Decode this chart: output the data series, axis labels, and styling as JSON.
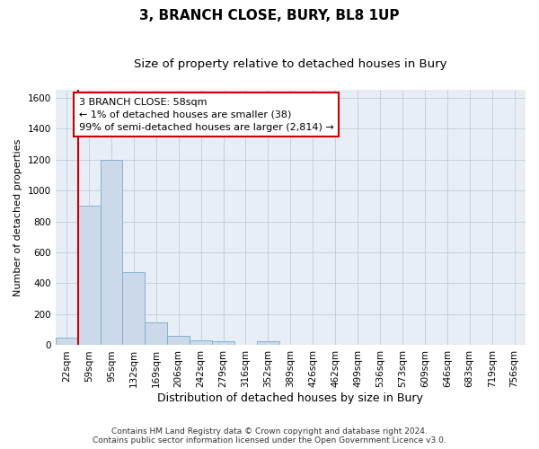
{
  "title": "3, BRANCH CLOSE, BURY, BL8 1UP",
  "subtitle": "Size of property relative to detached houses in Bury",
  "xlabel": "Distribution of detached houses by size in Bury",
  "ylabel": "Number of detached properties",
  "footnote": "Contains HM Land Registry data © Crown copyright and database right 2024.\nContains public sector information licensed under the Open Government Licence v3.0.",
  "categories": [
    "22sqm",
    "59sqm",
    "95sqm",
    "132sqm",
    "169sqm",
    "206sqm",
    "242sqm",
    "279sqm",
    "316sqm",
    "352sqm",
    "389sqm",
    "426sqm",
    "462sqm",
    "499sqm",
    "536sqm",
    "573sqm",
    "609sqm",
    "646sqm",
    "683sqm",
    "719sqm",
    "756sqm"
  ],
  "values": [
    50,
    900,
    1195,
    470,
    150,
    60,
    30,
    25,
    0,
    25,
    0,
    0,
    0,
    0,
    0,
    0,
    0,
    0,
    0,
    0,
    0
  ],
  "bar_color": "#ccd9ea",
  "bar_edge_color": "#7aabcc",
  "bar_edge_width": 0.6,
  "red_line_color": "#cc0000",
  "annotation_text": "3 BRANCH CLOSE: 58sqm\n← 1% of detached houses are smaller (38)\n99% of semi-detached houses are larger (2,814) →",
  "annotation_box_facecolor": "#ffffff",
  "annotation_box_edgecolor": "#cc0000",
  "ylim_max": 1650,
  "yticks": [
    0,
    200,
    400,
    600,
    800,
    1000,
    1200,
    1400,
    1600
  ],
  "grid_color": "#c0ccd8",
  "plot_bg": "#e8eef5",
  "title_fontsize": 11,
  "subtitle_fontsize": 9.5,
  "xlabel_fontsize": 9,
  "ylabel_fontsize": 8,
  "tick_fontsize": 7.5,
  "annotation_fontsize": 8,
  "footnote_fontsize": 6.5
}
